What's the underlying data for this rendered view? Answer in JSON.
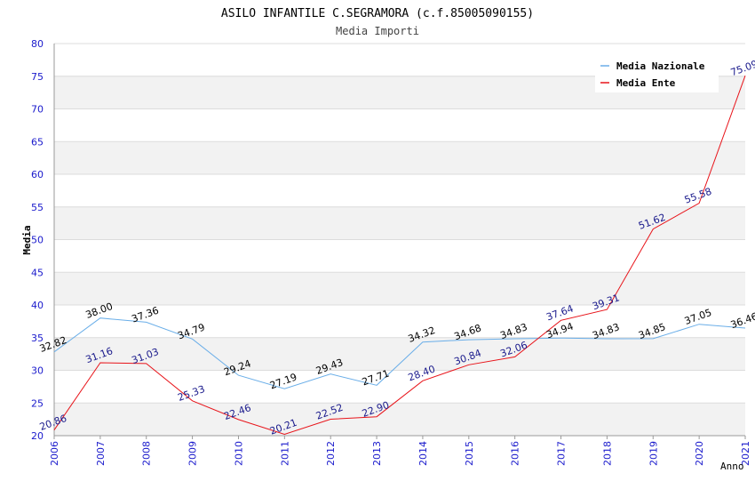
{
  "chart_data": {
    "type": "line",
    "title": "ASILO INFANTILE C.SEGRAMORA (c.f.85005090155)",
    "subtitle": "Media Importi",
    "xlabel": "Anno",
    "ylabel": "Media",
    "x": [
      "2006",
      "2007",
      "2008",
      "2009",
      "2010",
      "2011",
      "2012",
      "2013",
      "2014",
      "2015",
      "2016",
      "2017",
      "2018",
      "2019",
      "2020",
      "2021"
    ],
    "ylim": [
      20,
      80
    ],
    "yticks": [
      "20",
      "25",
      "30",
      "35",
      "40",
      "45",
      "50",
      "55",
      "60",
      "65",
      "70",
      "75",
      "80"
    ],
    "series": [
      {
        "name": "Media Nazionale",
        "color": "#6aaee8",
        "label_color": "#000000",
        "values": [
          32.82,
          38.0,
          37.36,
          34.79,
          29.24,
          27.19,
          29.43,
          27.71,
          34.32,
          34.68,
          34.83,
          34.94,
          34.83,
          34.85,
          37.05,
          36.46
        ],
        "value_labels": [
          "32.82",
          "38.00",
          "37.36",
          "34.79",
          "29.24",
          "27.19",
          "29.43",
          "27.71",
          "34.32",
          "34.68",
          "34.83",
          "34.94",
          "34.83",
          "34.85",
          "37.05",
          "36.46"
        ]
      },
      {
        "name": "Media Ente",
        "color": "#e8141a",
        "label_color": "#1a1a8c",
        "values": [
          20.86,
          31.16,
          31.03,
          25.33,
          22.46,
          20.21,
          22.52,
          22.9,
          28.4,
          30.84,
          32.06,
          37.64,
          39.31,
          51.62,
          55.58,
          75.09
        ],
        "value_labels": [
          "20.86",
          "31.16",
          "31.03",
          "25.33",
          "22.46",
          "20.21",
          "22.52",
          "22.90",
          "28.40",
          "30.84",
          "32.06",
          "37.64",
          "39.31",
          "51.62",
          "55.58",
          "75.09"
        ]
      }
    ],
    "legend_position": "top-right",
    "grid": true
  },
  "colors": {
    "band": "#f2f2f2",
    "grid": "#dcdcdc",
    "axis": "#999999",
    "tick_label": "#1a1acc",
    "title": "#000000"
  }
}
